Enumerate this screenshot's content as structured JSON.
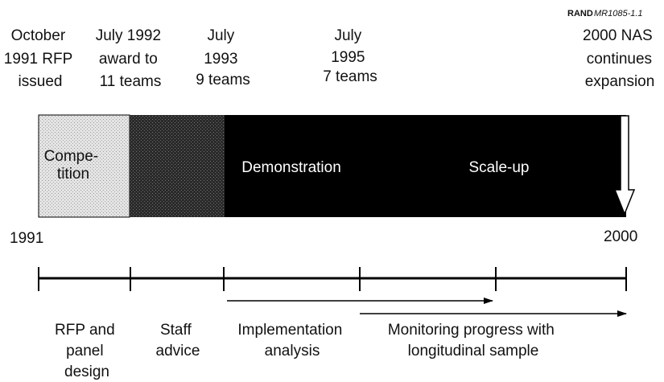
{
  "header": {
    "publisher": "RAND",
    "figure_id": "MR1085-1.1"
  },
  "milestones": [
    {
      "lines": [
        "October",
        "1991 RFP",
        "issued"
      ]
    },
    {
      "lines": [
        "July 1992",
        "award to",
        "11 teams"
      ]
    },
    {
      "lines": [
        "July",
        "1993",
        "9 teams"
      ]
    },
    {
      "lines": [
        "July",
        "1995",
        "7 teams"
      ]
    },
    {
      "lines": [
        "2000 NAS",
        "continues",
        "expansion"
      ]
    }
  ],
  "phases": [
    {
      "lines": [
        "Compe-",
        "tition"
      ]
    },
    {
      "lines": [
        "Demonstration"
      ]
    },
    {
      "lines": [
        "Scale-up"
      ]
    }
  ],
  "years": {
    "start": "1991",
    "end": "2000"
  },
  "activities": [
    {
      "lines": [
        "RFP and",
        "panel",
        "design"
      ]
    },
    {
      "lines": [
        "Staff",
        "advice"
      ]
    },
    {
      "lines": [
        "Implementation",
        "analysis"
      ]
    },
    {
      "lines": [
        "Monitoring progress with",
        "longitudinal sample"
      ]
    }
  ]
}
